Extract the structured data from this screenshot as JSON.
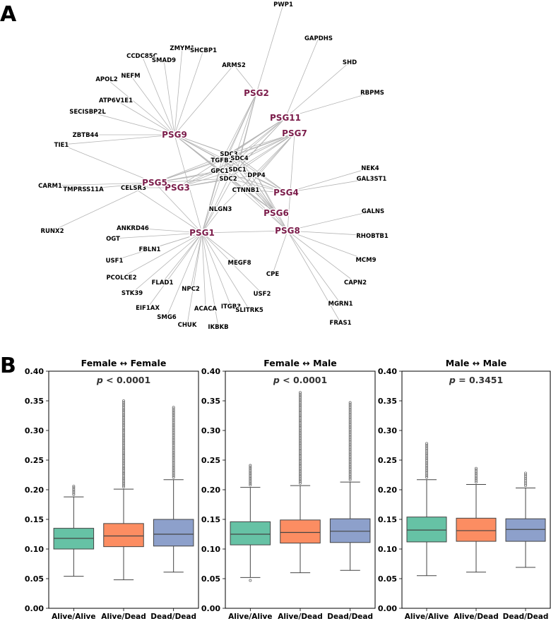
{
  "panel_labels": {
    "a": "A",
    "b": "B"
  },
  "colors": {
    "hub": "#7b1c4a",
    "edge": "#b4b4b4",
    "outlier": "#6e6e6e",
    "box_fills": [
      "#66c2a5",
      "#fc8d62",
      "#8da0cb"
    ]
  },
  "chart_data": [
    {
      "type": "network",
      "hubs": [
        "PSG1",
        "PSG2",
        "PSG3",
        "PSG4",
        "PSG5",
        "PSG6",
        "PSG7",
        "PSG8",
        "PSG9",
        "PSG11"
      ],
      "genes": [
        "PWP1",
        "GAPDHS",
        "SHD",
        "RBPMS",
        "ARMS2",
        "ZMYM1",
        "SHCBP1",
        "CCDC85C",
        "SMAD9",
        "NEFM",
        "APOL2",
        "ATP6V1E1",
        "SECISBP2L",
        "ZBTB44",
        "TIE1",
        "CARM1",
        "TMPRSS11A",
        "RUNX2",
        "CELSR3",
        "SDC3",
        "TGFB1",
        "SDC4",
        "GPC1",
        "SDC1",
        "SDC2",
        "DPP4",
        "CTNNB1",
        "NLGN3",
        "ANKRD46",
        "OGT",
        "FBLN1",
        "USF1",
        "PCOLCE2",
        "FLAD1",
        "STK39",
        "NPC2",
        "EIF1AX",
        "SMG6",
        "ACACA",
        "CHUK",
        "IKBKB",
        "ITGB3",
        "SLITRK5",
        "USF2",
        "MEGF8",
        "CPE",
        "FRAS1",
        "MGRN1",
        "CAPN2",
        "MCM9",
        "RHOBTB1",
        "GALNS",
        "NEK4",
        "GAL3ST1"
      ],
      "edges": [
        [
          "PSG9",
          "ZMYM1"
        ],
        [
          "PSG9",
          "SHCBP1"
        ],
        [
          "PSG9",
          "CCDC85C"
        ],
        [
          "PSG9",
          "SMAD9"
        ],
        [
          "PSG9",
          "NEFM"
        ],
        [
          "PSG9",
          "APOL2"
        ],
        [
          "PSG9",
          "ATP6V1E1"
        ],
        [
          "PSG9",
          "SECISBP2L"
        ],
        [
          "PSG9",
          "ZBTB44"
        ],
        [
          "PSG9",
          "TIE1"
        ],
        [
          "PSG9",
          "ARMS2"
        ],
        [
          "PSG9",
          "SDC3"
        ],
        [
          "PSG9",
          "SDC4"
        ],
        [
          "PSG9",
          "SDC1"
        ],
        [
          "PSG9",
          "SDC2"
        ],
        [
          "PSG9",
          "TGFB1"
        ],
        [
          "PSG9",
          "GPC1"
        ],
        [
          "PSG9",
          "DPP4"
        ],
        [
          "PSG9",
          "CTNNB1"
        ],
        [
          "PSG9",
          "PSG1"
        ],
        [
          "PSG2",
          "PWP1"
        ],
        [
          "PSG2",
          "ARMS2"
        ],
        [
          "PSG2",
          "SDC3"
        ],
        [
          "PSG2",
          "SDC4"
        ],
        [
          "PSG2",
          "TGFB1"
        ],
        [
          "PSG2",
          "SDC1"
        ],
        [
          "PSG2",
          "GPC1"
        ],
        [
          "PSG2",
          "SDC2"
        ],
        [
          "PSG11",
          "GAPDHS"
        ],
        [
          "PSG11",
          "SHD"
        ],
        [
          "PSG11",
          "RBPMS"
        ],
        [
          "PSG11",
          "SDC3"
        ],
        [
          "PSG11",
          "SDC4"
        ],
        [
          "PSG11",
          "TGFB1"
        ],
        [
          "PSG11",
          "GPC1"
        ],
        [
          "PSG11",
          "SDC1"
        ],
        [
          "PSG11",
          "SDC2"
        ],
        [
          "PSG11",
          "PSG3"
        ],
        [
          "PSG7",
          "SDC3"
        ],
        [
          "PSG7",
          "SDC4"
        ],
        [
          "PSG7",
          "TGFB1"
        ],
        [
          "PSG7",
          "GPC1"
        ],
        [
          "PSG7",
          "SDC1"
        ],
        [
          "PSG7",
          "SDC2"
        ],
        [
          "PSG7",
          "DPP4"
        ],
        [
          "PSG7",
          "CTNNB1"
        ],
        [
          "PSG7",
          "PSG5"
        ],
        [
          "PSG7",
          "NLGN3"
        ],
        [
          "PSG7",
          "PSG8"
        ],
        [
          "PSG5",
          "CARM1"
        ],
        [
          "PSG5",
          "TMPRSS11A"
        ],
        [
          "PSG5",
          "TIE1"
        ],
        [
          "PSG5",
          "RUNX2"
        ],
        [
          "PSG5",
          "SDC3"
        ],
        [
          "PSG5",
          "SDC1"
        ],
        [
          "PSG5",
          "SDC2"
        ],
        [
          "PSG5",
          "TGFB1"
        ],
        [
          "PSG5",
          "GPC1"
        ],
        [
          "PSG3",
          "CELSR3"
        ],
        [
          "PSG3",
          "SDC4"
        ],
        [
          "PSG3",
          "SDC1"
        ],
        [
          "PSG3",
          "SDC2"
        ],
        [
          "PSG3",
          "GPC1"
        ],
        [
          "PSG3",
          "DPP4"
        ],
        [
          "PSG4",
          "NEK4"
        ],
        [
          "PSG4",
          "GAL3ST1"
        ],
        [
          "PSG4",
          "SDC3"
        ],
        [
          "PSG4",
          "SDC4"
        ],
        [
          "PSG4",
          "SDC1"
        ],
        [
          "PSG4",
          "SDC2"
        ],
        [
          "PSG4",
          "TGFB1"
        ],
        [
          "PSG4",
          "GPC1"
        ],
        [
          "PSG4",
          "CTNNB1"
        ],
        [
          "PSG6",
          "SDC3"
        ],
        [
          "PSG6",
          "SDC4"
        ],
        [
          "PSG6",
          "SDC1"
        ],
        [
          "PSG6",
          "SDC2"
        ],
        [
          "PSG6",
          "TGFB1"
        ],
        [
          "PSG6",
          "GPC1"
        ],
        [
          "PSG6",
          "DPP4"
        ],
        [
          "PSG6",
          "CTNNB1"
        ],
        [
          "PSG8",
          "GALNS"
        ],
        [
          "PSG8",
          "RHOBTB1"
        ],
        [
          "PSG8",
          "MCM9"
        ],
        [
          "PSG8",
          "CAPN2"
        ],
        [
          "PSG8",
          "MGRN1"
        ],
        [
          "PSG8",
          "FRAS1"
        ],
        [
          "PSG8",
          "CPE"
        ],
        [
          "PSG8",
          "SDC1"
        ],
        [
          "PSG8",
          "SDC2"
        ],
        [
          "PSG8",
          "DPP4"
        ],
        [
          "PSG8",
          "CTNNB1"
        ],
        [
          "PSG8",
          "SDC4"
        ],
        [
          "PSG1",
          "ANKRD46"
        ],
        [
          "PSG1",
          "OGT"
        ],
        [
          "PSG1",
          "FBLN1"
        ],
        [
          "PSG1",
          "USF1"
        ],
        [
          "PSG1",
          "PCOLCE2"
        ],
        [
          "PSG1",
          "FLAD1"
        ],
        [
          "PSG1",
          "STK39"
        ],
        [
          "PSG1",
          "NPC2"
        ],
        [
          "PSG1",
          "EIF1AX"
        ],
        [
          "PSG1",
          "SMG6"
        ],
        [
          "PSG1",
          "ACACA"
        ],
        [
          "PSG1",
          "CHUK"
        ],
        [
          "PSG1",
          "IKBKB"
        ],
        [
          "PSG1",
          "ITGB3"
        ],
        [
          "PSG1",
          "SLITRK5"
        ],
        [
          "PSG1",
          "USF2"
        ],
        [
          "PSG1",
          "MEGF8"
        ],
        [
          "PSG1",
          "PSG8"
        ],
        [
          "PSG1",
          "NLGN3"
        ],
        [
          "PSG1",
          "SDC2"
        ],
        [
          "PSG1",
          "SDC1"
        ],
        [
          "PSG1",
          "GPC1"
        ],
        [
          "PSG1",
          "TGFB1"
        ],
        [
          "PSG1",
          "SDC3"
        ],
        [
          "PSG1",
          "CELSR3"
        ],
        [
          "PSG1",
          "PSG5"
        ]
      ]
    },
    {
      "type": "box",
      "title": "Female ↔ Female",
      "annotation": {
        "prefix": "p",
        "text": " < 0.0001"
      },
      "categories": [
        "Alive/Alive",
        "Alive/Dead",
        "Dead/Dead"
      ],
      "ylim": [
        0.0,
        0.4
      ],
      "yticks": [
        "0.00",
        "0.05",
        "0.10",
        "0.15",
        "0.20",
        "0.25",
        "0.30",
        "0.35",
        "0.40"
      ],
      "boxes": [
        {
          "min": 0.054,
          "q1": 0.1,
          "median": 0.118,
          "q3": 0.135,
          "max": 0.188,
          "outlier_top": 0.206
        },
        {
          "min": 0.048,
          "q1": 0.104,
          "median": 0.122,
          "q3": 0.143,
          "max": 0.201,
          "outlier_top": 0.35
        },
        {
          "min": 0.061,
          "q1": 0.105,
          "median": 0.125,
          "q3": 0.15,
          "max": 0.217,
          "outlier_top": 0.339
        }
      ]
    },
    {
      "type": "box",
      "title": "Female ↔ Male",
      "annotation": {
        "prefix": "p",
        "text": " < 0.0001"
      },
      "categories": [
        "Alive/Alive",
        "Alive/Dead",
        "Dead/Dead"
      ],
      "ylim": [
        0.0,
        0.4
      ],
      "yticks": [
        "0.00",
        "0.05",
        "0.10",
        "0.15",
        "0.20",
        "0.25",
        "0.30",
        "0.35",
        "0.40"
      ],
      "boxes": [
        {
          "min": 0.052,
          "q1": 0.107,
          "median": 0.125,
          "q3": 0.146,
          "max": 0.204,
          "outlier_top": 0.241,
          "outlier_bottom": 0.047
        },
        {
          "min": 0.06,
          "q1": 0.11,
          "median": 0.128,
          "q3": 0.149,
          "max": 0.207,
          "outlier_top": 0.364
        },
        {
          "min": 0.064,
          "q1": 0.111,
          "median": 0.13,
          "q3": 0.151,
          "max": 0.213,
          "outlier_top": 0.347
        }
      ]
    },
    {
      "type": "box",
      "title": "Male ↔ Male",
      "annotation": {
        "prefix": "p",
        "text": " = 0.3451"
      },
      "categories": [
        "Alive/Alive",
        "Alive/Dead",
        "Dead/Dead"
      ],
      "ylim": [
        0.0,
        0.4
      ],
      "yticks": [
        "0.00",
        "0.05",
        "0.10",
        "0.15",
        "0.20",
        "0.25",
        "0.30",
        "0.35",
        "0.40"
      ],
      "boxes": [
        {
          "min": 0.055,
          "q1": 0.112,
          "median": 0.132,
          "q3": 0.154,
          "max": 0.217,
          "outlier_top": 0.278
        },
        {
          "min": 0.061,
          "q1": 0.113,
          "median": 0.131,
          "q3": 0.152,
          "max": 0.209,
          "outlier_top": 0.236
        },
        {
          "min": 0.069,
          "q1": 0.113,
          "median": 0.133,
          "q3": 0.151,
          "max": 0.203,
          "outlier_top": 0.228
        }
      ]
    }
  ]
}
